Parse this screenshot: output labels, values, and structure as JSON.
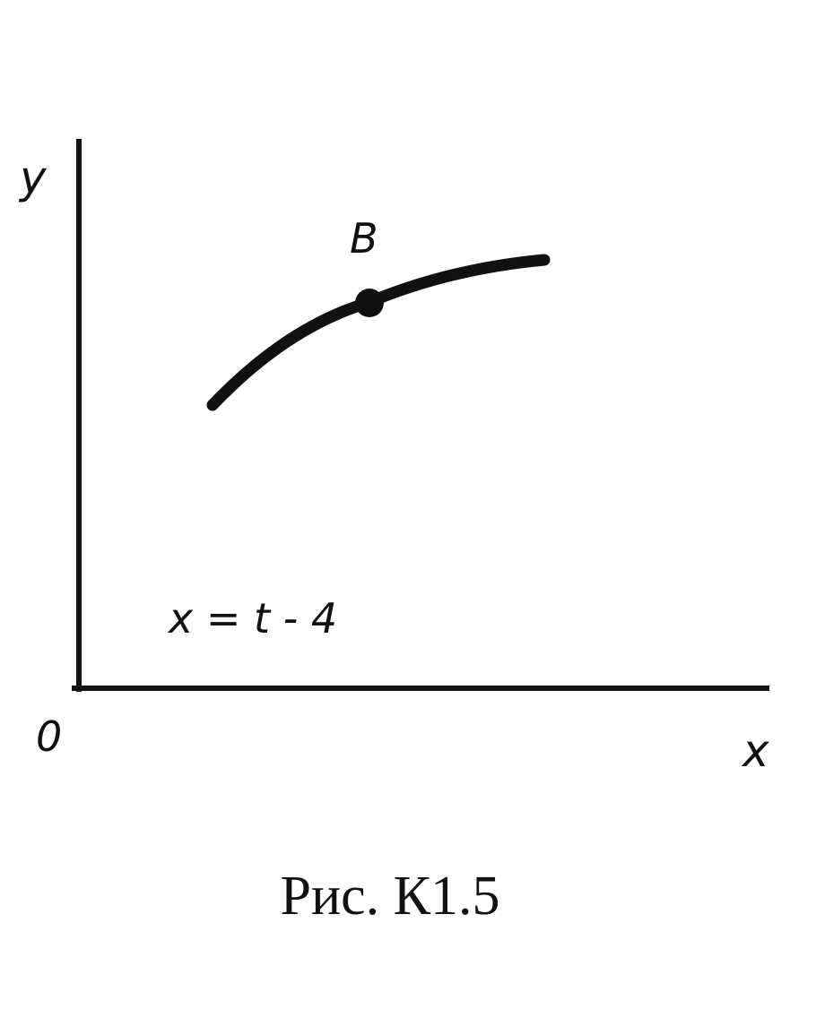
{
  "diagram": {
    "y_axis_label": "y",
    "x_axis_label": "x",
    "origin_label": "0",
    "point_label": "B",
    "equation": "x = t - 4",
    "caption": "Рис. К1.5",
    "line_color": "#111111"
  }
}
